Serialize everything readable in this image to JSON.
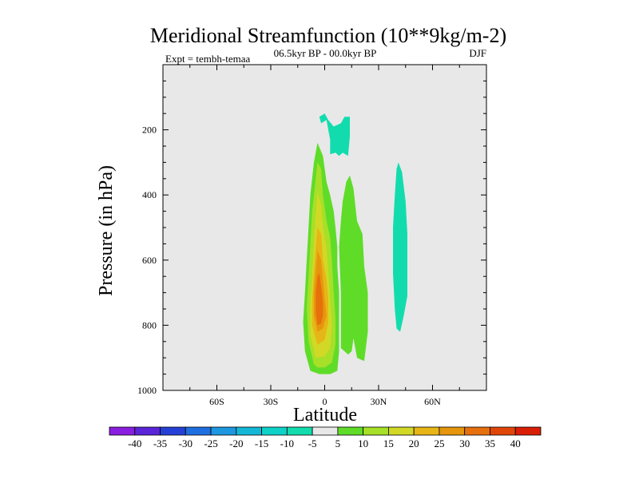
{
  "chart_data": {
    "type": "contour",
    "title": "Meridional Streamfunction (10**9kg/m-2)",
    "left_subtitle": "Expt = tembh-temaa",
    "center_subtitle": "06.5kyr BP - 00.0kyr BP",
    "right_subtitle": "DJF",
    "xlabel": "Latitude",
    "ylabel": "Pressure (in hPa)",
    "xlim": [
      -90,
      90
    ],
    "ylim": [
      1000,
      0
    ],
    "x_ticks": [
      {
        "value": -60,
        "label": "60S"
      },
      {
        "value": -30,
        "label": "30S"
      },
      {
        "value": 0,
        "label": "0"
      },
      {
        "value": 30,
        "label": "30N"
      },
      {
        "value": 60,
        "label": "60N"
      }
    ],
    "y_ticks": [
      {
        "value": 200,
        "label": "200"
      },
      {
        "value": 400,
        "label": "400"
      },
      {
        "value": 600,
        "label": "600"
      },
      {
        "value": 800,
        "label": "800"
      },
      {
        "value": 1000,
        "label": "1000"
      }
    ],
    "colorbar": {
      "levels": [
        -40,
        -35,
        -30,
        -25,
        -20,
        -15,
        -10,
        -5,
        5,
        10,
        15,
        20,
        25,
        30,
        35,
        40
      ],
      "labels": [
        "-40",
        "-35",
        "-30",
        "-25",
        "-20",
        "-15",
        "-10",
        "-5",
        "5",
        "10",
        "15",
        "20",
        "25",
        "30",
        "35",
        "40"
      ],
      "colors": [
        "#8a1ee0",
        "#5a24d8",
        "#2440d6",
        "#1e6fe0",
        "#1c97e0",
        "#14b7d6",
        "#0ed2c8",
        "#12dcae",
        "#e8e8e8",
        "#5fdc28",
        "#a6e028",
        "#d2d826",
        "#e6b616",
        "#e6960c",
        "#e6700c",
        "#e04608",
        "#d91e06"
      ]
    },
    "contours": [
      {
        "level": 5,
        "color": "#5fdc28",
        "points": [
          [
            -8,
            940
          ],
          [
            -11,
            880
          ],
          [
            -12,
            790
          ],
          [
            -11,
            700
          ],
          [
            -10,
            600
          ],
          [
            -9,
            500
          ],
          [
            -8,
            400
          ],
          [
            -6,
            300
          ],
          [
            -4,
            240
          ],
          [
            -1,
            280
          ],
          [
            1,
            360
          ],
          [
            3,
            400
          ],
          [
            5,
            450
          ],
          [
            6,
            500
          ],
          [
            7,
            560
          ],
          [
            7,
            620
          ],
          [
            8,
            700
          ],
          [
            8,
            780
          ],
          [
            8,
            880
          ],
          [
            7,
            940
          ],
          [
            3,
            950
          ],
          [
            -3,
            950
          ]
        ]
      },
      {
        "level": 5,
        "color": "#5fdc28",
        "points": [
          [
            9,
            870
          ],
          [
            9,
            800
          ],
          [
            9,
            700
          ],
          [
            8,
            560
          ],
          [
            9,
            480
          ],
          [
            10,
            420
          ],
          [
            12,
            360
          ],
          [
            14,
            340
          ],
          [
            16,
            380
          ],
          [
            18,
            480
          ],
          [
            21,
            520
          ],
          [
            22,
            620
          ],
          [
            24,
            700
          ],
          [
            24,
            820
          ],
          [
            22,
            910
          ],
          [
            18,
            900
          ],
          [
            16,
            840
          ],
          [
            15,
            880
          ],
          [
            13,
            890
          ],
          [
            11,
            880
          ]
        ]
      },
      {
        "level": 10,
        "color": "#a6e028",
        "points": [
          [
            -6,
            920
          ],
          [
            -9,
            850
          ],
          [
            -10,
            750
          ],
          [
            -9,
            650
          ],
          [
            -8,
            550
          ],
          [
            -7,
            450
          ],
          [
            -5,
            350
          ],
          [
            -4,
            300
          ],
          [
            -2,
            320
          ],
          [
            -1,
            400
          ],
          [
            1,
            480
          ],
          [
            3,
            530
          ],
          [
            4,
            600
          ],
          [
            5,
            700
          ],
          [
            6,
            780
          ],
          [
            6,
            860
          ],
          [
            4,
            915
          ],
          [
            0,
            930
          ],
          [
            -4,
            930
          ]
        ]
      },
      {
        "level": 15,
        "color": "#d2d826",
        "points": [
          [
            -5,
            900
          ],
          [
            -8,
            830
          ],
          [
            -8,
            740
          ],
          [
            -7,
            640
          ],
          [
            -6,
            540
          ],
          [
            -5,
            460
          ],
          [
            -4,
            390
          ],
          [
            -2,
            430
          ],
          [
            -1,
            500
          ],
          [
            1,
            560
          ],
          [
            2,
            640
          ],
          [
            3,
            720
          ],
          [
            4,
            800
          ],
          [
            3,
            870
          ],
          [
            0,
            895
          ]
        ]
      },
      {
        "level": 20,
        "color": "#e6b616",
        "points": [
          [
            -4,
            860
          ],
          [
            -7,
            800
          ],
          [
            -7,
            720
          ],
          [
            -6,
            640
          ],
          [
            -5,
            560
          ],
          [
            -4,
            500
          ],
          [
            -2,
            520
          ],
          [
            -1,
            600
          ],
          [
            1,
            660
          ],
          [
            2,
            720
          ],
          [
            2,
            790
          ],
          [
            0,
            845
          ]
        ]
      },
      {
        "level": 25,
        "color": "#e6960c",
        "points": [
          [
            -4,
            820
          ],
          [
            -6,
            770
          ],
          [
            -6,
            700
          ],
          [
            -5,
            630
          ],
          [
            -4,
            570
          ],
          [
            -2,
            600
          ],
          [
            -1,
            660
          ],
          [
            0,
            720
          ],
          [
            1,
            770
          ],
          [
            -1,
            810
          ]
        ]
      },
      {
        "level": 30,
        "color": "#e6700c",
        "points": [
          [
            -4,
            800
          ],
          [
            -5,
            760
          ],
          [
            -5,
            700
          ],
          [
            -4,
            650
          ],
          [
            -3,
            640
          ],
          [
            -2,
            680
          ],
          [
            -1,
            730
          ],
          [
            -1,
            770
          ],
          [
            -2,
            795
          ]
        ]
      },
      {
        "level": -5,
        "color": "#12dcae",
        "points": [
          [
            40,
            810
          ],
          [
            39,
            750
          ],
          [
            38,
            640
          ],
          [
            38,
            500
          ],
          [
            39,
            400
          ],
          [
            40,
            320
          ],
          [
            41,
            300
          ],
          [
            43,
            330
          ],
          [
            45,
            420
          ],
          [
            46,
            520
          ],
          [
            46,
            640
          ],
          [
            46,
            710
          ],
          [
            44,
            770
          ],
          [
            42,
            820
          ]
        ]
      },
      {
        "level": -5,
        "color": "#12dcae",
        "points": [
          [
            3,
            275
          ],
          [
            3,
            230
          ],
          [
            2,
            200
          ],
          [
            1,
            170
          ],
          [
            -2,
            180
          ],
          [
            -3,
            160
          ],
          [
            0,
            150
          ],
          [
            2,
            170
          ],
          [
            5,
            190
          ],
          [
            9,
            180
          ],
          [
            11,
            160
          ],
          [
            14,
            160
          ],
          [
            14,
            220
          ],
          [
            13,
            280
          ],
          [
            10,
            270
          ],
          [
            8,
            280
          ],
          [
            6,
            270
          ]
        ]
      }
    ]
  }
}
